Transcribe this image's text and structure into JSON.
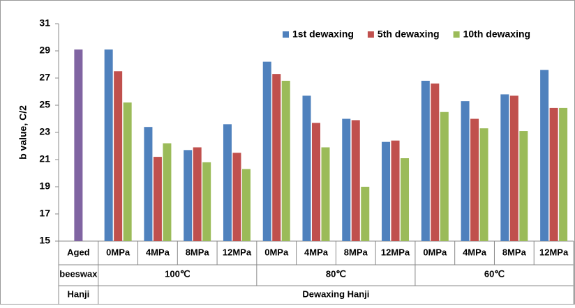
{
  "chart_data": {
    "type": "bar",
    "y_label": "b value, C/2",
    "ylim": [
      15,
      31
    ],
    "yticks": [
      15,
      17,
      19,
      21,
      23,
      25,
      27,
      29,
      31
    ],
    "categories": [
      "Aged",
      "0MPa",
      "4MPa",
      "8MPa",
      "12MPa",
      "0MPa",
      "4MPa",
      "8MPa",
      "12MPa",
      "0MPa",
      "4MPa",
      "8MPa",
      "12MPa"
    ],
    "x_groups": [
      {
        "label": "beeswax",
        "span": 1
      },
      {
        "label": "100℃",
        "span": 4
      },
      {
        "label": "80℃",
        "span": 4
      },
      {
        "label": "60℃",
        "span": 4
      }
    ],
    "x_supergroups": [
      {
        "label": "Hanji",
        "span": 1
      },
      {
        "label": "Dewaxing Hanji",
        "span": 12
      }
    ],
    "aged_bar": {
      "value": 29.1,
      "color": "#8064a2"
    },
    "series": [
      {
        "name": "1st dewaxing",
        "color": "#4f81bd",
        "values": [
          null,
          29.1,
          23.4,
          21.7,
          23.6,
          28.2,
          25.7,
          24.0,
          22.3,
          26.8,
          25.3,
          25.8,
          27.6
        ]
      },
      {
        "name": "5th dewaxing",
        "color": "#c0504d",
        "values": [
          null,
          27.5,
          21.2,
          21.9,
          21.5,
          27.3,
          23.7,
          23.9,
          22.4,
          26.6,
          24.0,
          25.7,
          24.8
        ]
      },
      {
        "name": "10th dewaxing",
        "color": "#9bbb59",
        "values": [
          null,
          25.2,
          22.2,
          20.8,
          20.3,
          26.8,
          21.9,
          19.0,
          21.1,
          24.5,
          23.3,
          23.1,
          24.8
        ]
      }
    ]
  }
}
